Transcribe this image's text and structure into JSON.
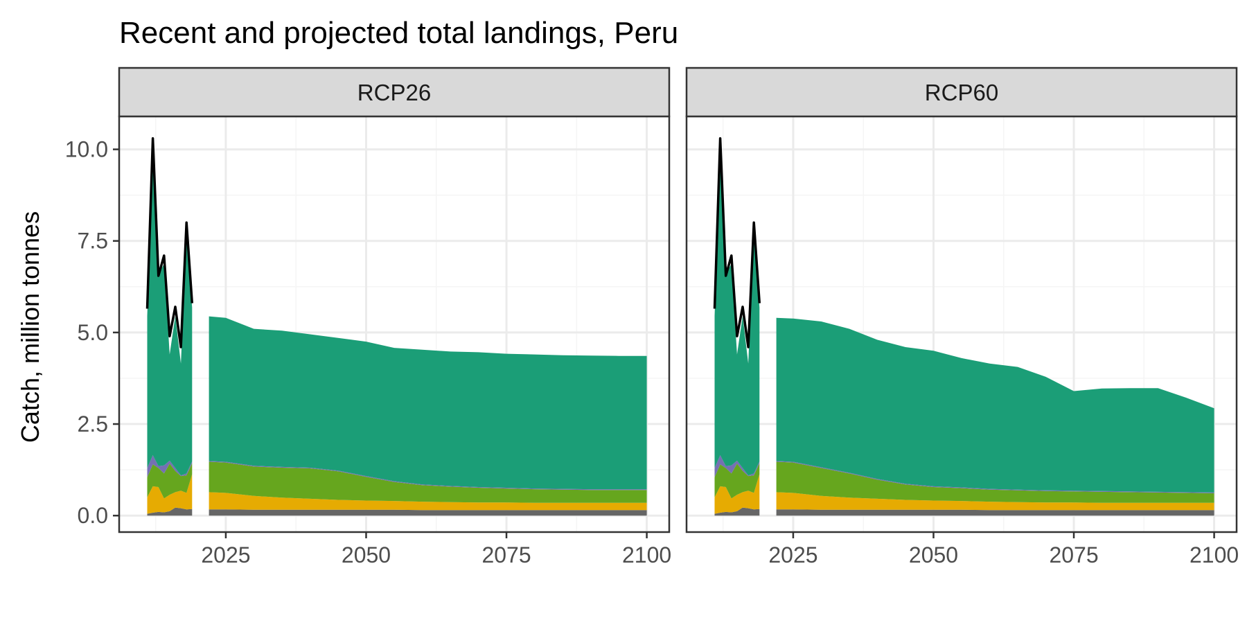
{
  "chart_data": {
    "type": "area",
    "title": "Recent and projected total landings, Peru",
    "ylabel": "Catch, million tonnes",
    "xlabel": "",
    "ylim": [
      -0.45,
      10.9
    ],
    "xlim": [
      2006,
      2104
    ],
    "x_ticks": [
      2025,
      2050,
      2075,
      2100
    ],
    "y_ticks": [
      0.0,
      2.5,
      5.0,
      7.5,
      10.0
    ],
    "y_tick_labels": [
      "0.0",
      "2.5",
      "5.0",
      "7.5",
      "10.0"
    ],
    "grid": true,
    "legend": "none",
    "colors": {
      "layer_grey": "#666666",
      "layer_yellow": "#E6AB02",
      "layer_green": "#66A61E",
      "layer_purple": "#7570B3",
      "layer_teal": "#1B9E77",
      "total_line": "#000000",
      "strip_fill": "#D9D9D9",
      "panel_border": "#333333",
      "grid_major": "#EBEBEB",
      "grid_minor": "#F5F5F5"
    },
    "panels": [
      {
        "label": "RCP26",
        "historical": {
          "x": [
            2011,
            2012,
            2013,
            2014,
            2015,
            2016,
            2017,
            2018,
            2019
          ],
          "grey": [
            0.05,
            0.08,
            0.1,
            0.09,
            0.12,
            0.22,
            0.2,
            0.17,
            0.18
          ],
          "yellow": [
            0.45,
            0.72,
            0.68,
            0.38,
            0.45,
            0.42,
            0.48,
            0.45,
            0.95
          ],
          "green": [
            0.55,
            0.6,
            0.52,
            0.68,
            0.85,
            0.58,
            0.4,
            0.48,
            0.3
          ],
          "purple": [
            0.25,
            0.25,
            0.05,
            0.22,
            0.08,
            0.08,
            0.02,
            0.05,
            0.05
          ],
          "teal": [
            4.15,
            8.45,
            5.25,
            5.5,
            2.9,
            4.15,
            3.05,
            6.65,
            4.2
          ],
          "total": [
            5.65,
            10.3,
            6.55,
            7.1,
            4.9,
            5.7,
            4.6,
            8.0,
            5.8
          ]
        },
        "projection": {
          "x": [
            2022,
            2025,
            2030,
            2035,
            2040,
            2045,
            2050,
            2055,
            2060,
            2065,
            2070,
            2075,
            2080,
            2085,
            2090,
            2095,
            2100
          ],
          "grey": [
            0.17,
            0.17,
            0.16,
            0.16,
            0.16,
            0.16,
            0.16,
            0.16,
            0.15,
            0.15,
            0.15,
            0.15,
            0.15,
            0.15,
            0.15,
            0.15,
            0.15
          ],
          "yellow": [
            0.47,
            0.45,
            0.38,
            0.33,
            0.3,
            0.27,
            0.25,
            0.24,
            0.23,
            0.22,
            0.21,
            0.21,
            0.2,
            0.2,
            0.2,
            0.2,
            0.2
          ],
          "green": [
            0.83,
            0.83,
            0.8,
            0.82,
            0.83,
            0.78,
            0.65,
            0.52,
            0.45,
            0.42,
            0.4,
            0.38,
            0.37,
            0.36,
            0.35,
            0.35,
            0.35
          ],
          "purple": [
            0.02,
            0.02,
            0.02,
            0.02,
            0.02,
            0.02,
            0.02,
            0.02,
            0.02,
            0.02,
            0.02,
            0.02,
            0.02,
            0.02,
            0.02,
            0.02,
            0.02
          ],
          "teal": [
            3.95,
            3.93,
            3.74,
            3.72,
            3.64,
            3.62,
            3.67,
            3.64,
            3.68,
            3.67,
            3.68,
            3.66,
            3.66,
            3.65,
            3.65,
            3.64,
            3.64
          ]
        }
      },
      {
        "label": "RCP60",
        "historical": {
          "x": [
            2011,
            2012,
            2013,
            2014,
            2015,
            2016,
            2017,
            2018,
            2019
          ],
          "grey": [
            0.05,
            0.08,
            0.1,
            0.09,
            0.12,
            0.22,
            0.2,
            0.17,
            0.18
          ],
          "yellow": [
            0.45,
            0.72,
            0.68,
            0.38,
            0.45,
            0.42,
            0.48,
            0.45,
            0.95
          ],
          "green": [
            0.55,
            0.6,
            0.52,
            0.68,
            0.85,
            0.58,
            0.4,
            0.48,
            0.3
          ],
          "purple": [
            0.25,
            0.25,
            0.05,
            0.22,
            0.08,
            0.08,
            0.02,
            0.05,
            0.05
          ],
          "teal": [
            4.15,
            8.45,
            5.25,
            5.5,
            2.9,
            4.15,
            3.05,
            6.65,
            4.2
          ],
          "total": [
            5.65,
            10.3,
            6.55,
            7.1,
            4.9,
            5.7,
            4.6,
            8.0,
            5.8
          ]
        },
        "projection": {
          "x": [
            2022,
            2025,
            2030,
            2035,
            2040,
            2045,
            2050,
            2055,
            2060,
            2065,
            2070,
            2075,
            2080,
            2085,
            2090,
            2095,
            2100
          ],
          "grey": [
            0.17,
            0.17,
            0.16,
            0.16,
            0.16,
            0.16,
            0.16,
            0.16,
            0.15,
            0.15,
            0.15,
            0.15,
            0.15,
            0.15,
            0.15,
            0.15,
            0.15
          ],
          "yellow": [
            0.47,
            0.45,
            0.38,
            0.33,
            0.3,
            0.27,
            0.25,
            0.24,
            0.23,
            0.22,
            0.21,
            0.21,
            0.2,
            0.2,
            0.2,
            0.2,
            0.2
          ],
          "green": [
            0.83,
            0.83,
            0.76,
            0.66,
            0.52,
            0.42,
            0.37,
            0.35,
            0.33,
            0.32,
            0.31,
            0.3,
            0.3,
            0.29,
            0.28,
            0.27,
            0.26
          ],
          "purple": [
            0.02,
            0.02,
            0.02,
            0.02,
            0.02,
            0.02,
            0.02,
            0.02,
            0.02,
            0.02,
            0.02,
            0.02,
            0.02,
            0.02,
            0.02,
            0.02,
            0.02
          ],
          "teal": [
            3.91,
            3.91,
            3.98,
            3.93,
            3.8,
            3.73,
            3.7,
            3.53,
            3.42,
            3.35,
            3.1,
            2.72,
            2.8,
            2.82,
            2.83,
            2.58,
            2.3
          ]
        }
      }
    ]
  }
}
